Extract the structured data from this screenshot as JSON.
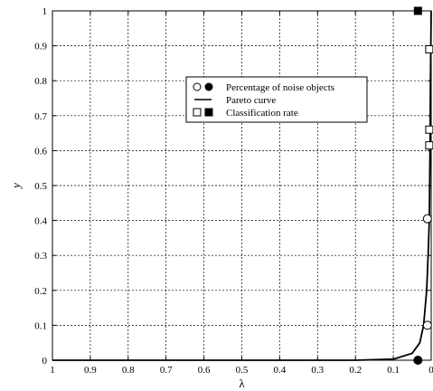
{
  "chart_data": {
    "type": "line",
    "xlabel": "λ",
    "ylabel": "y",
    "xlim": [
      1,
      0
    ],
    "ylim": [
      0,
      1
    ],
    "x_reversed": true,
    "grid": true,
    "legend_placement": "upper-center",
    "xticks": [
      "1",
      "0.9",
      "0.8",
      "0.7",
      "0.6",
      "0.5",
      "0.4",
      "0.3",
      "0.2",
      "0.1",
      "0"
    ],
    "xtick_values": [
      1,
      0.9,
      0.8,
      0.7,
      0.6,
      0.5,
      0.4,
      0.3,
      0.2,
      0.1,
      0
    ],
    "yticks": [
      "0",
      "0.1",
      "0.2",
      "0.3",
      "0.4",
      "0.5",
      "0.6",
      "0.7",
      "0.8",
      "0.9",
      "1"
    ],
    "ytick_values": [
      0,
      0.1,
      0.2,
      0.3,
      0.4,
      0.5,
      0.6,
      0.7,
      0.8,
      0.9,
      1
    ],
    "legend": [
      {
        "label": "Percentage of noise objects",
        "marker": "circle"
      },
      {
        "label": "Pareto curve",
        "marker": "line"
      },
      {
        "label": "Classification rate",
        "marker": "square"
      }
    ],
    "series": [
      {
        "name": "Pareto curve",
        "type": "line",
        "points": [
          [
            1,
            0
          ],
          [
            0.2,
            0.0
          ],
          [
            0.1,
            0.003
          ],
          [
            0.05,
            0.02
          ],
          [
            0.03,
            0.05
          ],
          [
            0.02,
            0.1
          ],
          [
            0.012,
            0.2
          ],
          [
            0.008,
            0.3
          ],
          [
            0.005,
            0.4
          ],
          [
            0.003,
            0.6
          ],
          [
            0.002,
            0.8
          ],
          [
            0,
            1
          ]
        ]
      },
      {
        "name": "Percentage of noise objects",
        "type": "scatter",
        "marker": "circle",
        "points": [
          {
            "x": 0.035,
            "y": 0.0,
            "filled": true
          },
          {
            "x": 0.01,
            "y": 0.1,
            "filled": false
          },
          {
            "x": 0.01,
            "y": 0.405,
            "filled": false
          }
        ]
      },
      {
        "name": "Classification rate",
        "type": "scatter",
        "marker": "square",
        "points": [
          {
            "x": 0.035,
            "y": 1.0,
            "filled": true
          },
          {
            "x": 0.005,
            "y": 0.89,
            "filled": false
          },
          {
            "x": 0.005,
            "y": 0.66,
            "filled": false
          },
          {
            "x": 0.005,
            "y": 0.615,
            "filled": false
          }
        ]
      }
    ]
  }
}
